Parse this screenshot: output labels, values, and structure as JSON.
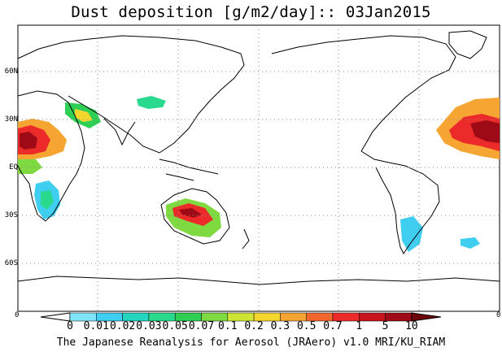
{
  "title": "Dust deposition [g/m2/day]:: 03Jan2015",
  "credit": "The Japanese Reanalysis for Aerosol (JRAero) v1.0 MRI/KU_RIAM",
  "lat_labels": [
    "60N",
    "30N",
    "EQ",
    "30S",
    "60S"
  ],
  "lon_edge_labels": [
    "0",
    "0"
  ],
  "colorbar": {
    "labels": [
      "0",
      "0.01",
      "0.02",
      "0.03",
      "0.05",
      "0.07",
      "0.1",
      "0.2",
      "0.3",
      "0.5",
      "0.7",
      "1",
      "5",
      "10"
    ],
    "colors": [
      "#ffffff",
      "#7ee4f7",
      "#3fcdf0",
      "#23d6c0",
      "#29d98d",
      "#2fcf56",
      "#7fd940",
      "#cfe533",
      "#f5d62e",
      "#f6a532",
      "#f2662d",
      "#ec2a2a",
      "#c8141e",
      "#9e0a16",
      "#6e0509"
    ]
  },
  "map": {
    "projection": "cylindrical equidistant, centered on 180E",
    "land_color": "#ffffff",
    "coastline_color": "#000000",
    "grid": "dotted"
  }
}
